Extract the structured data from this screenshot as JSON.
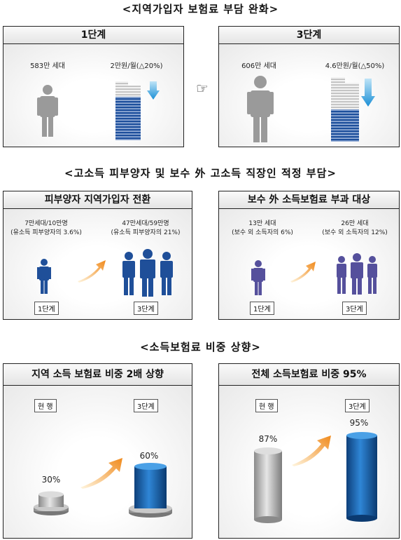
{
  "section1": {
    "title": "<지역가입자 보험료 부담 완화>",
    "left": {
      "header": "1단계",
      "households": "583만 세대",
      "premium": "2만원/월(△20%)"
    },
    "right": {
      "header": "3단계",
      "households": "606만 세대",
      "premium": "4.6만원/월(△50%)"
    },
    "arrow_glyph": "☞"
  },
  "section2": {
    "title": "<고소득 피부양자 및 보수 外 고소득 직장인 적정 부담>",
    "left": {
      "header": "피부양자 지역가입자 전환",
      "stage1_value": "7만세대/10만명",
      "stage1_note": "(유소득 피부양자의 3.6%)",
      "stage3_value": "47만세대/59만명",
      "stage3_note": "(유소득 피부양자의 21%)",
      "stage1_tag": "1단계",
      "stage3_tag": "3단계"
    },
    "right": {
      "header": "보수 外 소득보험료 부과 대상",
      "stage1_value": "13만 세대",
      "stage1_note": "(보수 외 소득자의 6%)",
      "stage3_value": "26만 세대",
      "stage3_note": "(보수 외 소득자의 12%)",
      "stage1_tag": "1단계",
      "stage3_tag": "3단계"
    }
  },
  "section3": {
    "title": "<소득보험료 비중 상향>",
    "left": {
      "header": "지역 소득 보험료 비중 2배 상향",
      "current_tag": "현 행",
      "stage3_tag": "3단계",
      "current_value": "30%",
      "stage3_value": "60%"
    },
    "right": {
      "header": "전체 소득보험료 비중 95%",
      "current_tag": "현 행",
      "stage3_tag": "3단계",
      "current_value": "87%",
      "stage3_value": "95%"
    }
  }
}
